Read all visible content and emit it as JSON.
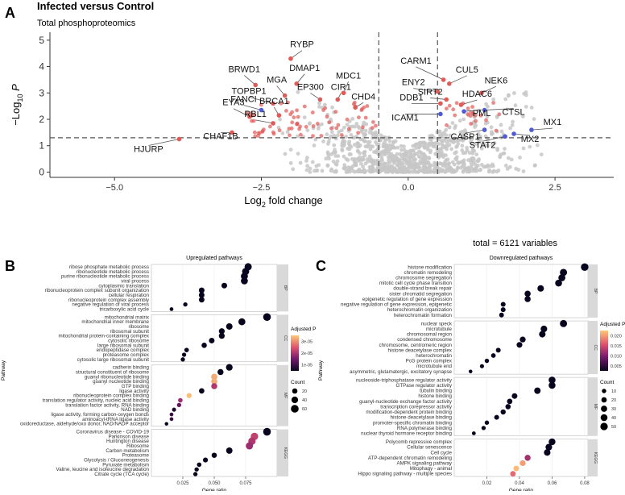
{
  "figure": {
    "panel_a_letter": "A",
    "panel_b_letter": "B",
    "panel_c_letter": "C",
    "title": "Infected versus Control",
    "subtitle": "Total phosphoproteomics",
    "total_note": "total = 6121 variables"
  },
  "chart_data": [
    {
      "type": "scatter",
      "title": "Infected versus Control",
      "subtitle": "Total phosphoproteomics",
      "xlabel_main": "Log",
      "xlabel_sub": "2",
      "xlabel_tail": " fold change",
      "ylabel_main": "−Log",
      "ylabel_sub": "10",
      "ylabel_tail": " P",
      "xlim": [
        -6.1,
        3.5
      ],
      "ylim": [
        -0.2,
        5.3
      ],
      "xticks": [
        -5.0,
        -2.5,
        0.0,
        2.5
      ],
      "xtick_labels": [
        "−5.0",
        "−2.5",
        "0.0",
        "2.5"
      ],
      "yticks": [
        0,
        1,
        2,
        3,
        4,
        5
      ],
      "fc_threshold": [
        -0.5,
        0.5
      ],
      "p_threshold": 1.3,
      "colors": {
        "background": "#c7c7c7",
        "up_down": "#e05a57",
        "viral": "#4f5bd5",
        "label_line": "#555555"
      },
      "labeled_points": [
        {
          "label": "RYBP",
          "x": -2.0,
          "y": 4.3,
          "color": "#e05a57"
        },
        {
          "label": "BRWD1",
          "x": -2.6,
          "y": 3.3,
          "color": "#e05a57"
        },
        {
          "label": "DMAP1",
          "x": -1.9,
          "y": 3.35,
          "color": "#e05a57"
        },
        {
          "label": "MGA",
          "x": -2.1,
          "y": 2.9,
          "color": "#e05a57"
        },
        {
          "label": "MDC1",
          "x": -1.1,
          "y": 3.0,
          "color": "#e05a57"
        },
        {
          "label": "EP300",
          "x": -1.5,
          "y": 2.75,
          "color": "#e05a57"
        },
        {
          "label": "TOPBP1",
          "x": -2.3,
          "y": 2.6,
          "color": "#e05a57"
        },
        {
          "label": "CIR1",
          "x": -1.2,
          "y": 2.75,
          "color": "#e05a57"
        },
        {
          "label": "FANCI",
          "x": -2.5,
          "y": 2.35,
          "color": "#4f5bd5"
        },
        {
          "label": "CHD4",
          "x": -0.9,
          "y": 2.45,
          "color": "#e05a57"
        },
        {
          "label": "EYA3",
          "x": -2.7,
          "y": 2.1,
          "color": "#e05a57"
        },
        {
          "label": "BRCA1",
          "x": -2.2,
          "y": 2.15,
          "color": "#e05a57"
        },
        {
          "label": "RBL1",
          "x": -2.3,
          "y": 1.85,
          "color": "#e05a57"
        },
        {
          "label": "CHAF1B",
          "x": -3.0,
          "y": 1.5,
          "color": "#e05a57"
        },
        {
          "label": "HJURP",
          "x": -3.9,
          "y": 1.25,
          "color": "#e05a57"
        },
        {
          "label": "CARM1",
          "x": 0.6,
          "y": 3.5,
          "color": "#e05a57"
        },
        {
          "label": "CUL5",
          "x": 0.7,
          "y": 3.35,
          "color": "#e05a57"
        },
        {
          "label": "ENY2",
          "x": 0.5,
          "y": 3.05,
          "color": "#e05a57"
        },
        {
          "label": "NEK6",
          "x": 1.25,
          "y": 3.0,
          "color": "#e05a57"
        },
        {
          "label": "SIRT2",
          "x": 0.65,
          "y": 2.75,
          "color": "#e05a57"
        },
        {
          "label": "DDB1",
          "x": 0.55,
          "y": 2.6,
          "color": "#e05a57"
        },
        {
          "label": "HDAC6",
          "x": 0.9,
          "y": 2.55,
          "color": "#e05a57"
        },
        {
          "label": "CTSL",
          "x": 1.3,
          "y": 2.35,
          "color": "#4f5bd5"
        },
        {
          "label": "ICAM1",
          "x": 0.55,
          "y": 2.2,
          "color": "#4f5bd5"
        },
        {
          "label": "PML",
          "x": 0.95,
          "y": 2.3,
          "color": "#4f5bd5"
        },
        {
          "label": "CASP1",
          "x": 1.3,
          "y": 1.6,
          "color": "#4f5bd5"
        },
        {
          "label": "MX1",
          "x": 2.1,
          "y": 1.6,
          "color": "#4f5bd5"
        },
        {
          "label": "MX2",
          "x": 1.8,
          "y": 1.45,
          "color": "#4f5bd5"
        },
        {
          "label": "STAT2",
          "x": 1.65,
          "y": 1.35,
          "color": "#4f5bd5"
        }
      ]
    },
    {
      "type": "scatter",
      "title": "Upregulated pathways",
      "xlabel": "Gene ratio",
      "ylabel": "Pathway",
      "xlim": [
        0.0,
        0.1
      ],
      "xticks": [
        0.025,
        0.05,
        0.075
      ],
      "xtick_labels": [
        "0.025",
        "0.050",
        "0.075"
      ],
      "legend_color_title": "Adjusted P",
      "legend_color_ticks": [
        "3e-05",
        "2e-05",
        "1e-05"
      ],
      "legend_size_title": "Count",
      "legend_size_ticks": [
        "20",
        "40",
        "60"
      ],
      "groups": [
        {
          "name": "BP",
          "terms": [
            {
              "term": "ribose phosphate metabolic process",
              "ratio": 0.077,
              "count": 50,
              "p": 0.0
            },
            {
              "term": "ribonucleotide metabolic process",
              "ratio": 0.075,
              "count": 48,
              "p": 0.0
            },
            {
              "term": "purine ribonucleotide metabolic process",
              "ratio": 0.074,
              "count": 46,
              "p": 0.0
            },
            {
              "term": "viral process",
              "ratio": 0.074,
              "count": 45,
              "p": 0.0
            },
            {
              "term": "cytoplasmic translation",
              "ratio": 0.058,
              "count": 25,
              "p": 0.0
            },
            {
              "term": "ribonucleoprotein complex subunit organization",
              "ratio": 0.04,
              "count": 25,
              "p": 0.0
            },
            {
              "term": "cellular respiration",
              "ratio": 0.04,
              "count": 25,
              "p": 0.0
            },
            {
              "term": "ribonucleoprotein complex assembly",
              "ratio": 0.04,
              "count": 24,
              "p": 0.0
            },
            {
              "term": "negative regulation of viral process",
              "ratio": 0.027,
              "count": 10,
              "p": 0.0
            },
            {
              "term": "tricarboxylic acid cycle",
              "ratio": 0.016,
              "count": 6,
              "p": 0.0
            }
          ]
        },
        {
          "name": "CC",
          "terms": [
            {
              "term": "mitochondrial matrix",
              "ratio": 0.092,
              "count": 60,
              "p": 0.0
            },
            {
              "term": "mitochondrial inner membrane",
              "ratio": 0.072,
              "count": 45,
              "p": 0.0
            },
            {
              "term": "ribosome",
              "ratio": 0.062,
              "count": 36,
              "p": 0.0
            },
            {
              "term": "ribosomal subunit",
              "ratio": 0.056,
              "count": 28,
              "p": 0.0
            },
            {
              "term": "mitochondrial protein-containing complex",
              "ratio": 0.056,
              "count": 28,
              "p": 0.0
            },
            {
              "term": "cytosolic ribosome",
              "ratio": 0.048,
              "count": 24,
              "p": 0.0
            },
            {
              "term": "large ribosomal subunit",
              "ratio": 0.042,
              "count": 20,
              "p": 0.0
            },
            {
              "term": "endopeptidase complex",
              "ratio": 0.028,
              "count": 12,
              "p": 0.0
            },
            {
              "term": "proteasome complex",
              "ratio": 0.026,
              "count": 10,
              "p": 0.0
            },
            {
              "term": "cytosolic large ribosomal subunit",
              "ratio": 0.025,
              "count": 10,
              "p": 0.0
            }
          ]
        },
        {
          "name": "MF",
          "terms": [
            {
              "term": "cadherin binding",
              "ratio": 0.062,
              "count": 40,
              "p": 0.0
            },
            {
              "term": "structural constituent of ribosome",
              "ratio": 0.055,
              "count": 30,
              "p": 0.0
            },
            {
              "term": "guanyl ribonucleotide binding",
              "ratio": 0.05,
              "count": 32,
              "p": 3.2e-05
            },
            {
              "term": "guanyl nucleotide binding",
              "ratio": 0.05,
              "count": 32,
              "p": 3.2e-05
            },
            {
              "term": "GTP binding",
              "ratio": 0.05,
              "count": 30,
              "p": 1.8e-05
            },
            {
              "term": "ligase activity",
              "ratio": 0.04,
              "count": 22,
              "p": 0.0
            },
            {
              "term": "ribonucleoprotein complex binding",
              "ratio": 0.03,
              "count": 18,
              "p": 3.4e-05
            },
            {
              "term": "translation regulator activity, nucleic acid binding",
              "ratio": 0.023,
              "count": 12,
              "p": 1.6e-05
            },
            {
              "term": "translation factor activity, RNA binding",
              "ratio": 0.022,
              "count": 10,
              "p": 1e-05
            },
            {
              "term": "NAD binding",
              "ratio": 0.018,
              "count": 8,
              "p": 2e-06
            },
            {
              "term": "ligase activity, forming carbon-oxygen bonds",
              "ratio": 0.016,
              "count": 6,
              "p": 5e-06
            },
            {
              "term": "aminoacyl-tRNA ligase activity",
              "ratio": 0.016,
              "count": 6,
              "p": 5e-06
            },
            {
              "term": "oxidoreductase, aldehyde/oxo donor, NAD/NADP acceptor",
              "ratio": 0.012,
              "count": 5,
              "p": 0.0
            }
          ]
        },
        {
          "name": "KEGG",
          "terms": [
            {
              "term": "Coronavirus disease - COVID-19",
              "ratio": 0.092,
              "count": 60,
              "p": 0.0
            },
            {
              "term": "Parkinson disease",
              "ratio": 0.082,
              "count": 55,
              "p": 2e-05
            },
            {
              "term": "Huntington disease",
              "ratio": 0.08,
              "count": 52,
              "p": 1.8e-05
            },
            {
              "term": "Ribosome",
              "ratio": 0.078,
              "count": 50,
              "p": 1.6e-05
            },
            {
              "term": "Carbon metabolism",
              "ratio": 0.062,
              "count": 35,
              "p": 0.0
            },
            {
              "term": "Proteasome",
              "ratio": 0.05,
              "count": 20,
              "p": 0.0
            },
            {
              "term": "Glycolysis / Gluconeogenesis",
              "ratio": 0.043,
              "count": 16,
              "p": 0.0
            },
            {
              "term": "Pyruvate metabolism",
              "ratio": 0.038,
              "count": 12,
              "p": 0.0
            },
            {
              "term": "Valine, leucine and isoleucine degradation",
              "ratio": 0.036,
              "count": 10,
              "p": 0.0
            },
            {
              "term": "Citrate cycle (TCA cycle)",
              "ratio": 0.035,
              "count": 10,
              "p": 0.0
            }
          ]
        }
      ]
    },
    {
      "type": "scatter",
      "title": "Downregulated pathways",
      "xlabel": "Gene ratio",
      "ylabel": "Pathway",
      "xlim": [
        0.0,
        0.082
      ],
      "xticks": [
        0.02,
        0.04,
        0.06,
        0.08
      ],
      "xtick_labels": [
        "0.02",
        "0.04",
        "0.06",
        "0.08"
      ],
      "legend_color_title": "Adjusted P",
      "legend_color_ticks": [
        "0.020",
        "0.015",
        "0.010",
        "0.005"
      ],
      "legend_size_title": "Count",
      "legend_size_ticks": [
        "10",
        "20",
        "30",
        "40",
        "50"
      ],
      "groups": [
        {
          "name": "BP",
          "terms": [
            {
              "term": "histone modification",
              "ratio": 0.08,
              "count": 52,
              "p": 0.0
            },
            {
              "term": "chromatin remodeling",
              "ratio": 0.067,
              "count": 45,
              "p": 0.0
            },
            {
              "term": "chromosome segregation",
              "ratio": 0.066,
              "count": 42,
              "p": 0.0
            },
            {
              "term": "mitotic cell cycle phase transition",
              "ratio": 0.064,
              "count": 40,
              "p": 0.0
            },
            {
              "term": "double-strand break repair",
              "ratio": 0.053,
              "count": 34,
              "p": 0.0
            },
            {
              "term": "sister chromatid segregation",
              "ratio": 0.045,
              "count": 28,
              "p": 0.0
            },
            {
              "term": "epigenetic regulation of gene expression",
              "ratio": 0.045,
              "count": 28,
              "p": 0.0
            },
            {
              "term": "negative regulation of gene expression, epigenetic",
              "ratio": 0.03,
              "count": 14,
              "p": 0.0
            },
            {
              "term": "heterochromatin organization",
              "ratio": 0.03,
              "count": 14,
              "p": 0.0
            },
            {
              "term": "heterochromatin formation",
              "ratio": 0.029,
              "count": 13,
              "p": 0.0
            }
          ]
        },
        {
          "name": "CC",
          "terms": [
            {
              "term": "nuclear speck",
              "ratio": 0.067,
              "count": 45,
              "p": 0.0
            },
            {
              "term": "microtubule",
              "ratio": 0.055,
              "count": 35,
              "p": 0.0
            },
            {
              "term": "chromosomal region",
              "ratio": 0.054,
              "count": 34,
              "p": 0.0
            },
            {
              "term": "condensed chromosome",
              "ratio": 0.042,
              "count": 25,
              "p": 0.0
            },
            {
              "term": "chromosome, centromeric region",
              "ratio": 0.04,
              "count": 24,
              "p": 0.0
            },
            {
              "term": "histone deacetylase complex",
              "ratio": 0.027,
              "count": 14,
              "p": 0.0
            },
            {
              "term": "heterochromatin",
              "ratio": 0.024,
              "count": 12,
              "p": 0.0
            },
            {
              "term": "PcG protein complex",
              "ratio": 0.02,
              "count": 10,
              "p": 0.0
            },
            {
              "term": "microtubule end",
              "ratio": 0.017,
              "count": 8,
              "p": 0.0
            },
            {
              "term": "asymmetric, glutamatergic, excitatory synapse",
              "ratio": 0.01,
              "count": 5,
              "p": 0.0
            }
          ]
        },
        {
          "name": "MF",
          "terms": [
            {
              "term": "nucleoside-triphosphatase regulator activity",
              "ratio": 0.06,
              "count": 40,
              "p": 0.0
            },
            {
              "term": "GTPase regulator activity",
              "ratio": 0.06,
              "count": 40,
              "p": 0.0
            },
            {
              "term": "tubulin binding",
              "ratio": 0.051,
              "count": 33,
              "p": 0.0
            },
            {
              "term": "histone binding",
              "ratio": 0.037,
              "count": 22,
              "p": 0.0
            },
            {
              "term": "guanyl-nucleotide exchange factor activity",
              "ratio": 0.034,
              "count": 20,
              "p": 0.0
            },
            {
              "term": "transcription corepressor activity",
              "ratio": 0.033,
              "count": 19,
              "p": 0.0
            },
            {
              "term": "modification-dependent protein binding",
              "ratio": 0.03,
              "count": 17,
              "p": 0.0
            },
            {
              "term": "histone deacetylase binding",
              "ratio": 0.026,
              "count": 14,
              "p": 0.0
            },
            {
              "term": "promoter-specific chromatin binding",
              "ratio": 0.02,
              "count": 10,
              "p": 0.0
            },
            {
              "term": "RNA polymerase binding",
              "ratio": 0.018,
              "count": 9,
              "p": 0.0
            },
            {
              "term": "nuclear thyroid hormone receptor binding",
              "ratio": 0.012,
              "count": 6,
              "p": 0.0
            }
          ]
        },
        {
          "name": "KEGG",
          "terms": [
            {
              "term": "Polycomb repressive complex",
              "ratio": 0.06,
              "count": 38,
              "p": 0.0
            },
            {
              "term": "Cellular senescence",
              "ratio": 0.058,
              "count": 36,
              "p": 0.0
            },
            {
              "term": "Cell cycle",
              "ratio": 0.057,
              "count": 35,
              "p": 0.0
            },
            {
              "term": "ATP-dependent chromatin remodeling",
              "ratio": 0.045,
              "count": 27,
              "p": 0.012
            },
            {
              "term": "AMPK signaling pathway",
              "ratio": 0.042,
              "count": 25,
              "p": 0.022
            },
            {
              "term": "Mitophagy - animal",
              "ratio": 0.038,
              "count": 22,
              "p": 0.024
            },
            {
              "term": "Hippo signaling pathway - multiple species",
              "ratio": 0.036,
              "count": 21,
              "p": 0.018
            }
          ]
        }
      ]
    }
  ]
}
